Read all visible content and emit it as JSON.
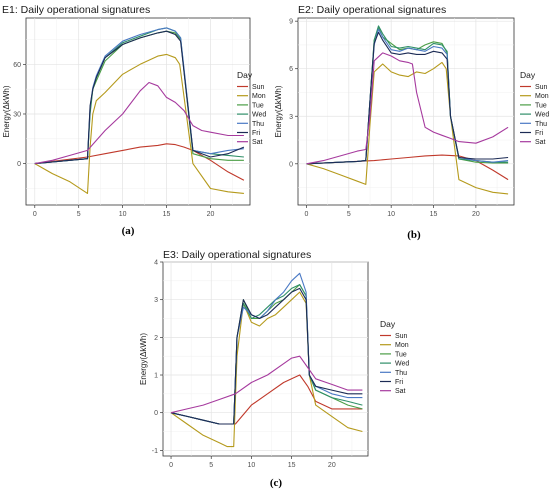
{
  "chart_data": [
    {
      "type": "line",
      "title": "E1: Daily operational signatures",
      "ylabel": "Energy(ΔkWh)",
      "caption": "(a)",
      "xlim": [
        -1,
        24.5
      ],
      "ylim": [
        -25,
        88
      ],
      "xticks": [
        0,
        5,
        10,
        15,
        20
      ],
      "yticks": [
        0,
        30,
        60
      ],
      "legend_title": "Day",
      "series": [
        {
          "name": "Sun",
          "color": "#c0392b",
          "x": [
            0,
            3,
            6,
            8,
            10,
            12,
            14,
            15,
            16,
            17,
            18,
            20,
            22,
            23.8
          ],
          "y": [
            0,
            2,
            4,
            6,
            8,
            10,
            11,
            12,
            11.5,
            10,
            8,
            2,
            -5,
            -10
          ]
        },
        {
          "name": "Mon",
          "color": "#b59a1c",
          "x": [
            0,
            2,
            4,
            6,
            6.3,
            6.6,
            7,
            8,
            10,
            12,
            14,
            15,
            16,
            16.5,
            17,
            18,
            20,
            22,
            23.8
          ],
          "y": [
            0,
            -6,
            -11,
            -18,
            10,
            30,
            38,
            43,
            54,
            60,
            65,
            66,
            64,
            60,
            40,
            0,
            -15,
            -17,
            -18
          ]
        },
        {
          "name": "Tue",
          "color": "#4b9e46",
          "x": [
            0,
            2,
            4,
            6,
            6.3,
            6.6,
            7,
            8,
            10,
            12,
            14,
            15,
            16,
            16.6,
            17,
            18,
            20,
            22,
            23.8
          ],
          "y": [
            0,
            1,
            2,
            3,
            30,
            45,
            50,
            62,
            72,
            76,
            79,
            80,
            79,
            75,
            55,
            6,
            3,
            2,
            2
          ]
        },
        {
          "name": "Wed",
          "color": "#2f8f68",
          "x": [
            0,
            2,
            4,
            6,
            6.3,
            6.6,
            7,
            8,
            10,
            12,
            14,
            15,
            16,
            16.6,
            17,
            18,
            20,
            22,
            23.8
          ],
          "y": [
            0,
            1,
            2,
            3,
            32,
            45,
            52,
            64,
            73,
            77,
            81,
            82,
            80,
            76,
            56,
            8,
            6,
            5,
            4
          ]
        },
        {
          "name": "Thu",
          "color": "#4a79c4",
          "x": [
            0,
            2,
            4,
            6,
            6.3,
            6.6,
            7,
            8,
            10,
            12,
            14,
            15,
            16,
            16.6,
            17,
            18,
            20,
            22,
            23.8
          ],
          "y": [
            0,
            1,
            2,
            3,
            34,
            46,
            53,
            65,
            74,
            78,
            81,
            82,
            80,
            76,
            57,
            8,
            6,
            8,
            9
          ]
        },
        {
          "name": "Fri",
          "color": "#1c2b55",
          "x": [
            0,
            2,
            4,
            6,
            6.3,
            6.6,
            7,
            8,
            10,
            12,
            14,
            15,
            16,
            16.6,
            17,
            18,
            20,
            22,
            23.8
          ],
          "y": [
            0,
            1,
            2,
            3,
            35,
            45,
            52,
            64,
            72,
            76,
            79,
            80,
            78,
            74,
            55,
            8,
            4,
            6,
            10
          ]
        },
        {
          "name": "Sat",
          "color": "#a63a9e",
          "x": [
            0,
            2,
            4,
            6,
            8,
            10,
            12,
            13,
            14,
            15,
            16,
            17,
            18,
            19,
            20,
            22,
            23.8
          ],
          "y": [
            0,
            2,
            5,
            8,
            20,
            30,
            44,
            49,
            47,
            40,
            37,
            32,
            23,
            20,
            19,
            17,
            17
          ]
        }
      ]
    },
    {
      "type": "line",
      "title": "E2: Daily operational signatures",
      "ylabel": "Energy(ΔkWh)",
      "caption": "(b)",
      "xlim": [
        -1,
        24.5
      ],
      "ylim": [
        -2.6,
        9.2
      ],
      "xticks": [
        0,
        5,
        10,
        15,
        20
      ],
      "yticks": [
        0,
        3,
        6,
        9
      ],
      "legend_title": "Day",
      "series": [
        {
          "name": "Sun",
          "color": "#c0392b",
          "x": [
            0,
            4,
            8,
            10,
            12,
            14,
            16,
            18,
            20,
            22,
            23.8
          ],
          "y": [
            0,
            0.1,
            0.2,
            0.3,
            0.4,
            0.5,
            0.55,
            0.5,
            0.2,
            -0.4,
            -1.0
          ]
        },
        {
          "name": "Mon",
          "color": "#b59a1c",
          "x": [
            0,
            2,
            4,
            6,
            7,
            7.5,
            8,
            9,
            10,
            11,
            12,
            13,
            14,
            15,
            16,
            16.5,
            17,
            18,
            20,
            22,
            23.8
          ],
          "y": [
            0,
            -0.3,
            -0.7,
            -1.1,
            -1.3,
            2.5,
            5.8,
            6.3,
            5.8,
            5.6,
            5.5,
            5.8,
            5.7,
            6.0,
            6.4,
            6.0,
            3.0,
            -1.0,
            -1.5,
            -1.8,
            -1.9
          ]
        },
        {
          "name": "Tue",
          "color": "#4b9e46",
          "x": [
            0,
            2,
            4,
            6,
            7,
            7.5,
            8,
            8.5,
            9,
            10,
            11,
            12,
            13,
            14,
            15,
            16,
            16.6,
            17,
            18,
            20,
            22,
            23.8
          ],
          "y": [
            0,
            0.05,
            0.1,
            0.15,
            0.2,
            4.0,
            7.8,
            8.6,
            8.0,
            7.6,
            7.2,
            7.3,
            7.2,
            7.5,
            7.7,
            7.6,
            7.0,
            3.0,
            0.3,
            0.1,
            0.05,
            0.05
          ]
        },
        {
          "name": "Wed",
          "color": "#2f8f68",
          "x": [
            0,
            2,
            4,
            6,
            7,
            7.5,
            8,
            8.5,
            9,
            10,
            11,
            12,
            13,
            14,
            15,
            16,
            16.6,
            17,
            18,
            20,
            22,
            23.8
          ],
          "y": [
            0,
            0.05,
            0.1,
            0.15,
            0.2,
            4.0,
            7.8,
            8.7,
            8.2,
            7.4,
            7.3,
            7.4,
            7.3,
            7.2,
            7.6,
            7.5,
            7.1,
            3.0,
            0.3,
            0.2,
            0.1,
            0.1
          ]
        },
        {
          "name": "Thu",
          "color": "#4a79c4",
          "x": [
            0,
            2,
            4,
            6,
            7,
            7.5,
            8,
            8.5,
            9,
            10,
            11,
            12,
            13,
            14,
            15,
            16,
            16.6,
            17,
            18,
            20,
            22,
            23.8
          ],
          "y": [
            0,
            0.05,
            0.1,
            0.15,
            0.2,
            4.0,
            7.5,
            8.5,
            8.0,
            7.2,
            7.1,
            7.3,
            7.2,
            7.1,
            7.4,
            7.3,
            6.9,
            3.0,
            0.4,
            0.2,
            0.1,
            0.2
          ]
        },
        {
          "name": "Fri",
          "color": "#1c2b55",
          "x": [
            0,
            2,
            4,
            6,
            7,
            7.5,
            8,
            8.5,
            9,
            10,
            11,
            12,
            13,
            14,
            15,
            16,
            16.6,
            17,
            18,
            20,
            22,
            23.8
          ],
          "y": [
            0,
            0.05,
            0.1,
            0.15,
            0.2,
            4.0,
            7.6,
            8.3,
            7.8,
            7.0,
            6.9,
            7.0,
            6.9,
            6.9,
            7.1,
            7.0,
            6.6,
            3.0,
            0.4,
            0.3,
            0.3,
            0.4
          ]
        },
        {
          "name": "Sat",
          "color": "#a63a9e",
          "x": [
            0,
            2,
            4,
            6,
            7,
            7.5,
            8,
            9,
            10,
            11,
            12,
            12.5,
            13,
            14,
            15,
            16,
            17,
            18,
            20,
            22,
            23.8
          ],
          "y": [
            0,
            0.2,
            0.5,
            0.8,
            0.9,
            3.0,
            6.5,
            7.0,
            6.8,
            6.5,
            6.4,
            6.3,
            4.5,
            2.3,
            2.0,
            1.8,
            1.6,
            1.4,
            1.3,
            1.7,
            2.3
          ]
        }
      ]
    },
    {
      "type": "line",
      "title": "E3: Daily operational signatures",
      "ylabel": "Energy(ΔkWh)",
      "caption": "(c)",
      "xlim": [
        -1,
        24.5
      ],
      "ylim": [
        -1.15,
        4.0
      ],
      "xticks": [
        0,
        5,
        10,
        15,
        20
      ],
      "yticks": [
        -1,
        0,
        1,
        2,
        3,
        4
      ],
      "legend_title": "Day",
      "series": [
        {
          "name": "Sun",
          "color": "#c0392b",
          "x": [
            0,
            2,
            4,
            6,
            8,
            10,
            12,
            14,
            15,
            16,
            17,
            18,
            20,
            22,
            23.8
          ],
          "y": [
            0,
            -0.1,
            -0.2,
            -0.3,
            -0.3,
            0.2,
            0.5,
            0.8,
            0.9,
            1.0,
            0.7,
            0.3,
            0.1,
            0.1,
            0.1
          ]
        },
        {
          "name": "Mon",
          "color": "#b59a1c",
          "x": [
            0,
            2,
            4,
            6,
            7,
            7.8,
            8.2,
            9,
            10,
            11,
            12,
            13,
            14,
            15,
            16,
            16.8,
            17.2,
            18,
            20,
            22,
            23.8
          ],
          "y": [
            0,
            -0.3,
            -0.6,
            -0.8,
            -0.9,
            -0.9,
            1.5,
            2.9,
            2.4,
            2.3,
            2.5,
            2.6,
            2.8,
            3.0,
            3.2,
            2.9,
            1.0,
            0.2,
            -0.1,
            -0.4,
            -0.5
          ]
        },
        {
          "name": "Tue",
          "color": "#4b9e46",
          "x": [
            0,
            2,
            4,
            6,
            7,
            7.8,
            8.2,
            9,
            10,
            11,
            12,
            13,
            14,
            15,
            16,
            16.8,
            17.2,
            18,
            20,
            22,
            23.8
          ],
          "y": [
            0,
            -0.1,
            -0.2,
            -0.3,
            -0.3,
            -0.3,
            2.0,
            3.0,
            2.5,
            2.5,
            2.7,
            2.9,
            3.0,
            3.2,
            3.4,
            3.1,
            1.0,
            0.6,
            0.4,
            0.2,
            0.1
          ]
        },
        {
          "name": "Wed",
          "color": "#2f8f68",
          "x": [
            0,
            2,
            4,
            6,
            7,
            7.8,
            8.2,
            9,
            10,
            11,
            12,
            13,
            14,
            15,
            16,
            16.8,
            17.2,
            18,
            20,
            22,
            23.8
          ],
          "y": [
            0,
            -0.1,
            -0.2,
            -0.3,
            -0.3,
            -0.3,
            2.0,
            2.9,
            2.5,
            2.6,
            2.8,
            3.0,
            3.1,
            3.3,
            3.4,
            3.1,
            1.0,
            0.6,
            0.4,
            0.3,
            0.2
          ]
        },
        {
          "name": "Thu",
          "color": "#4a79c4",
          "x": [
            0,
            2,
            4,
            6,
            7,
            7.8,
            8.2,
            9,
            10,
            11,
            12,
            13,
            14,
            15,
            16,
            16.8,
            17.2,
            18,
            20,
            22,
            23.8
          ],
          "y": [
            0,
            -0.1,
            -0.2,
            -0.3,
            -0.3,
            -0.3,
            2.0,
            2.8,
            2.6,
            2.5,
            2.7,
            3.0,
            3.2,
            3.5,
            3.7,
            3.2,
            1.0,
            0.7,
            0.5,
            0.4,
            0.4
          ]
        },
        {
          "name": "Fri",
          "color": "#1c2b55",
          "x": [
            0,
            2,
            4,
            6,
            7,
            7.8,
            8.2,
            9,
            10,
            11,
            12,
            13,
            14,
            15,
            16,
            16.8,
            17.2,
            18,
            20,
            22,
            23.8
          ],
          "y": [
            0,
            -0.1,
            -0.2,
            -0.3,
            -0.3,
            -0.3,
            2.0,
            3.0,
            2.6,
            2.5,
            2.6,
            2.8,
            3.0,
            3.2,
            3.3,
            3.0,
            1.0,
            0.7,
            0.6,
            0.5,
            0.5
          ]
        },
        {
          "name": "Sat",
          "color": "#a63a9e",
          "x": [
            0,
            2,
            4,
            6,
            8,
            10,
            12,
            14,
            15,
            16,
            17,
            18,
            20,
            22,
            23.8
          ],
          "y": [
            0,
            0.1,
            0.2,
            0.35,
            0.5,
            0.8,
            1.0,
            1.3,
            1.45,
            1.5,
            1.2,
            0.9,
            0.75,
            0.6,
            0.6
          ]
        }
      ]
    }
  ]
}
